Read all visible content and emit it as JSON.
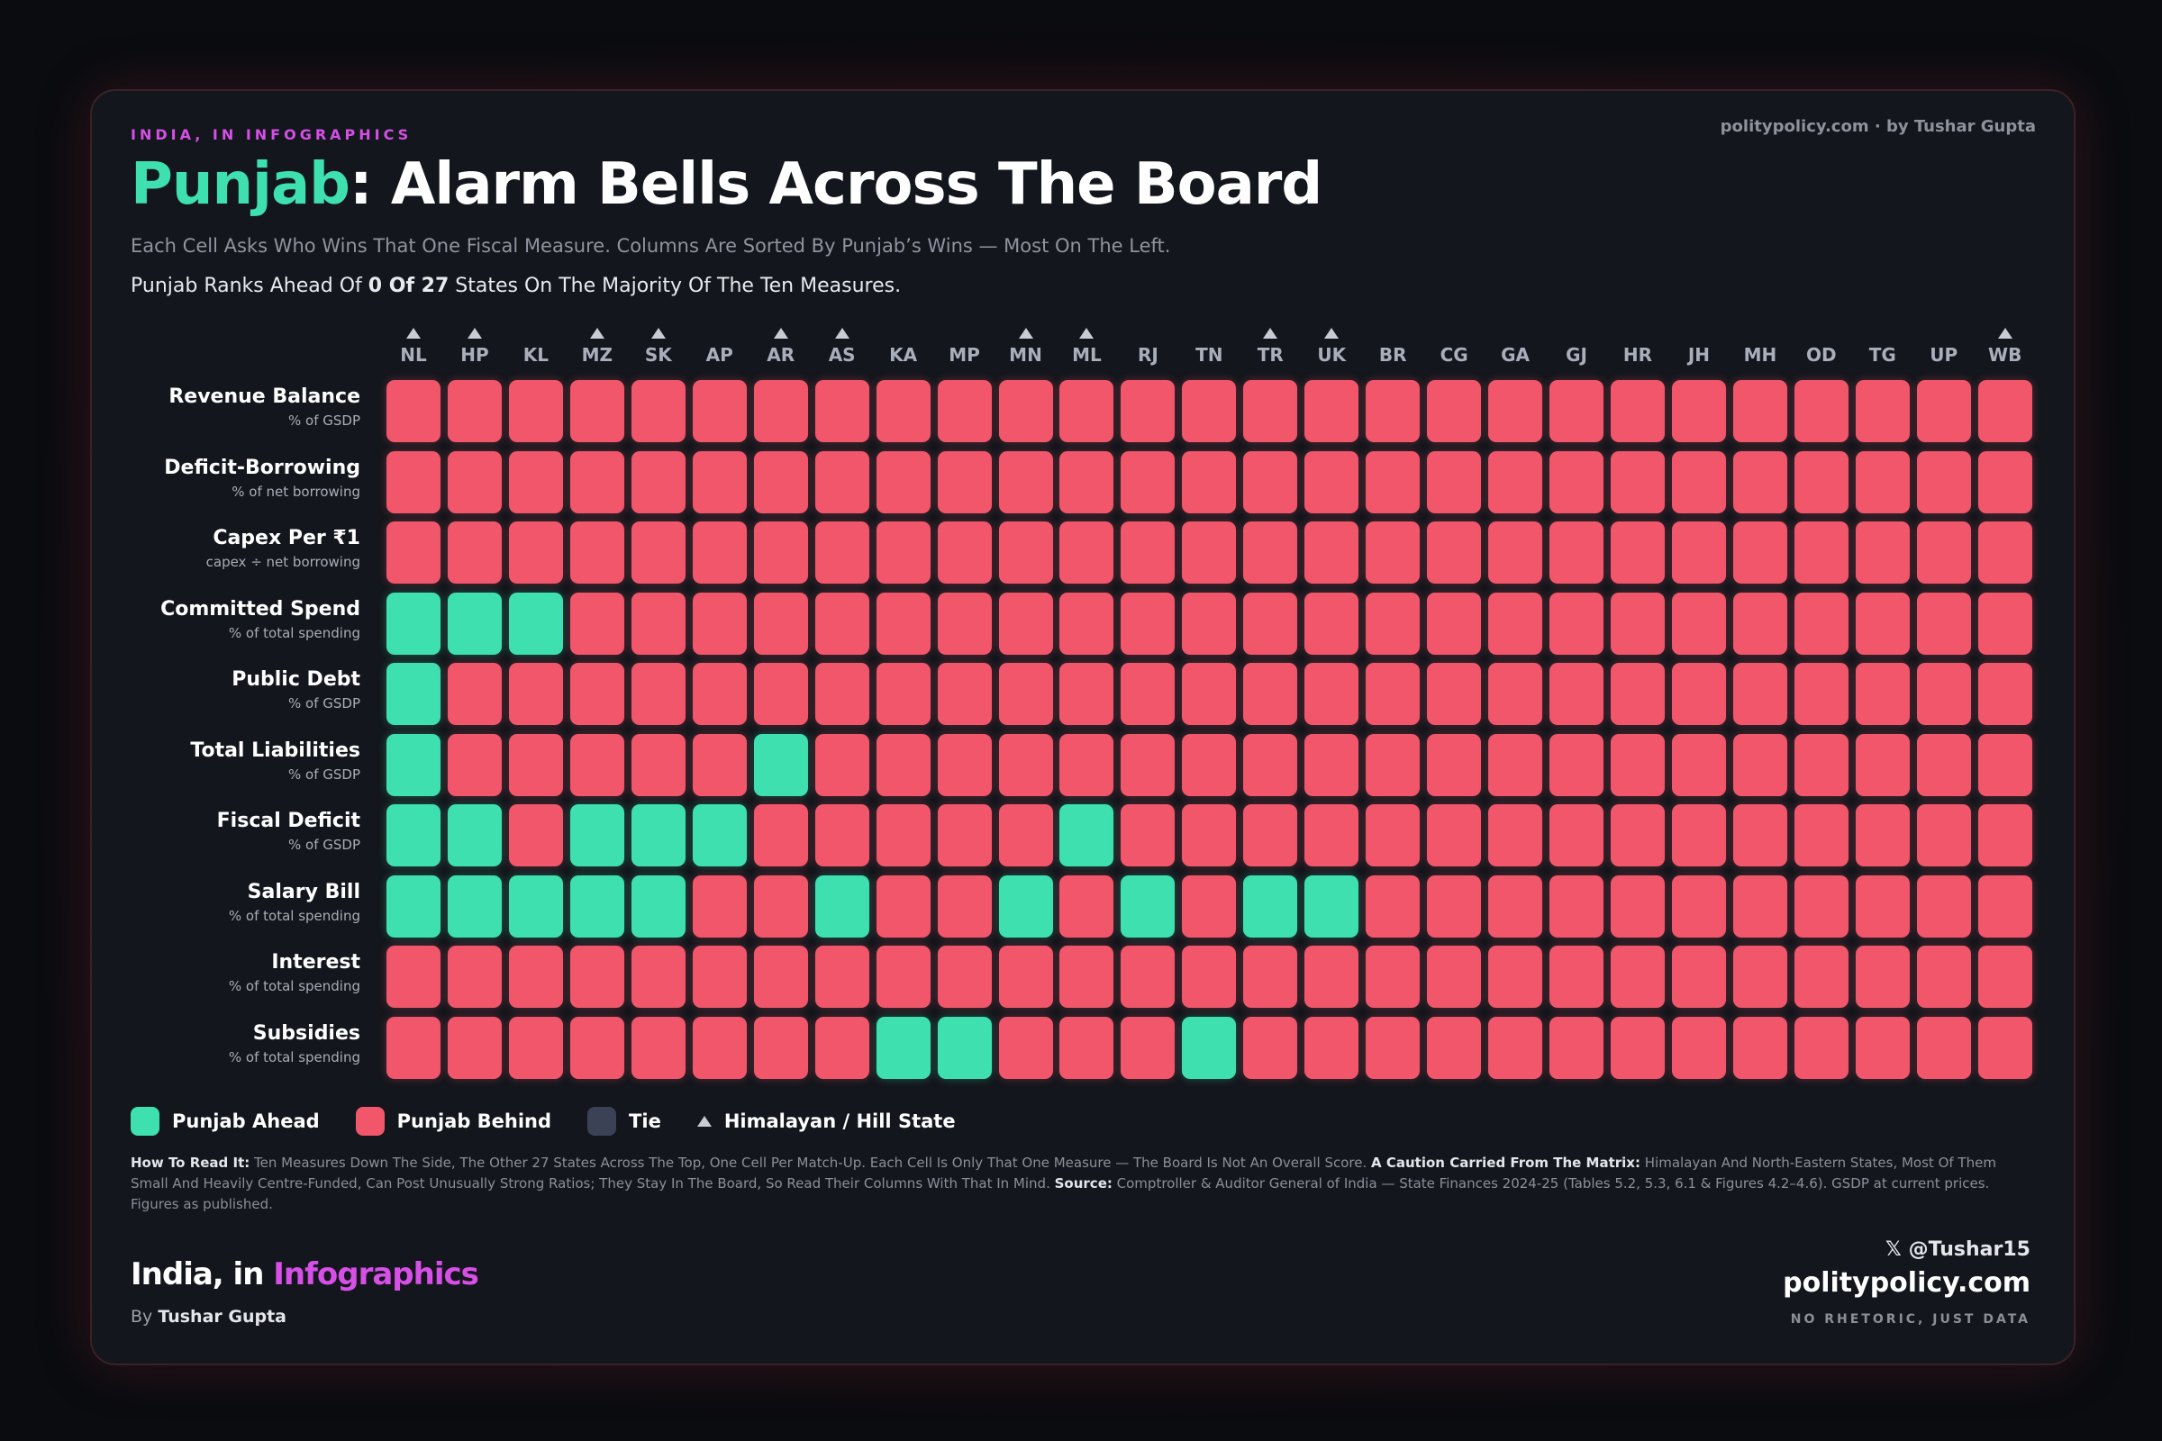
{
  "header": {
    "eyebrow": "INDIA, IN INFOGRAPHICS",
    "credit": "politypolicy.com · by Tushar Gupta",
    "title_highlight": "Punjab",
    "title_rest": ": Alarm Bells Across The Board",
    "subtitle": "Each Cell Asks Who Wins That One Fiscal Measure. Columns Are Sorted By Punjab’s Wins — Most On The Left.",
    "summary_pre": "Punjab Ranks Ahead Of",
    "summary_bold": "0 Of 27",
    "summary_post": "States On The Majority Of The Ten Measures."
  },
  "legend": [
    {
      "label": "Punjab Ahead",
      "color": "#3ee0b0"
    },
    {
      "label": "Punjab Behind",
      "color": "#f2566b"
    },
    {
      "label": "Tie",
      "color": "#3b4256"
    },
    {
      "label": "Himalayan / Hill State"
    }
  ],
  "matrix": {
    "columns": [
      {
        "label": "NL",
        "hill": true
      },
      {
        "label": "HP",
        "hill": true
      },
      {
        "label": "KL",
        "hill": false
      },
      {
        "label": "MZ",
        "hill": true
      },
      {
        "label": "SK",
        "hill": true
      },
      {
        "label": "AP",
        "hill": false
      },
      {
        "label": "AR",
        "hill": true
      },
      {
        "label": "AS",
        "hill": true
      },
      {
        "label": "KA",
        "hill": false
      },
      {
        "label": "MP",
        "hill": false
      },
      {
        "label": "MN",
        "hill": true
      },
      {
        "label": "ML",
        "hill": true
      },
      {
        "label": "RJ",
        "hill": false
      },
      {
        "label": "TN",
        "hill": false
      },
      {
        "label": "TR",
        "hill": true
      },
      {
        "label": "UK",
        "hill": true
      },
      {
        "label": "BR",
        "hill": false
      },
      {
        "label": "CG",
        "hill": false
      },
      {
        "label": "GA",
        "hill": false
      },
      {
        "label": "GJ",
        "hill": false
      },
      {
        "label": "HR",
        "hill": false
      },
      {
        "label": "JH",
        "hill": false
      },
      {
        "label": "MH",
        "hill": false
      },
      {
        "label": "OD",
        "hill": false
      },
      {
        "label": "TG",
        "hill": false
      },
      {
        "label": "UP",
        "hill": false
      },
      {
        "label": "WB",
        "hill": true
      }
    ],
    "rows": [
      {
        "name": "Revenue Balance",
        "unit": "% of GSDP",
        "cells": [
          1,
          1,
          1,
          1,
          1,
          1,
          1,
          1,
          1,
          1,
          1,
          1,
          1,
          1,
          1,
          1,
          1,
          1,
          1,
          1,
          1,
          1,
          1,
          1,
          1,
          1,
          1
        ]
      },
      {
        "name": "Deficit-Borrowing",
        "unit": "% of net borrowing",
        "cells": [
          1,
          1,
          1,
          1,
          1,
          1,
          1,
          1,
          1,
          1,
          1,
          1,
          1,
          1,
          1,
          1,
          1,
          1,
          1,
          1,
          1,
          1,
          1,
          1,
          1,
          1,
          1
        ]
      },
      {
        "name": "Capex Per ₹1",
        "unit": "capex ÷ net borrowing",
        "cells": [
          1,
          1,
          1,
          1,
          1,
          1,
          1,
          1,
          1,
          1,
          1,
          1,
          1,
          1,
          1,
          1,
          1,
          1,
          1,
          1,
          1,
          1,
          1,
          1,
          1,
          1,
          1
        ]
      },
      {
        "name": "Committed Spend",
        "unit": "% of total spending",
        "cells": [
          0,
          0,
          0,
          1,
          1,
          1,
          1,
          1,
          1,
          1,
          1,
          1,
          1,
          1,
          1,
          1,
          1,
          1,
          1,
          1,
          1,
          1,
          1,
          1,
          1,
          1,
          1
        ]
      },
      {
        "name": "Public Debt",
        "unit": "% of GSDP",
        "cells": [
          0,
          1,
          1,
          1,
          1,
          1,
          1,
          1,
          1,
          1,
          1,
          1,
          1,
          1,
          1,
          1,
          1,
          1,
          1,
          1,
          1,
          1,
          1,
          1,
          1,
          1,
          1
        ]
      },
      {
        "name": "Total Liabilities",
        "unit": "% of GSDP",
        "cells": [
          0,
          1,
          1,
          1,
          1,
          1,
          0,
          1,
          1,
          1,
          1,
          1,
          1,
          1,
          1,
          1,
          1,
          1,
          1,
          1,
          1,
          1,
          1,
          1,
          1,
          1,
          1
        ]
      },
      {
        "name": "Fiscal Deficit",
        "unit": "% of GSDP",
        "cells": [
          0,
          0,
          1,
          0,
          0,
          0,
          1,
          1,
          1,
          1,
          1,
          0,
          1,
          1,
          1,
          1,
          1,
          1,
          1,
          1,
          1,
          1,
          1,
          1,
          1,
          1,
          1
        ]
      },
      {
        "name": "Salary Bill",
        "unit": "% of total spending",
        "cells": [
          0,
          0,
          0,
          0,
          0,
          1,
          1,
          0,
          1,
          1,
          0,
          1,
          0,
          1,
          0,
          0,
          1,
          1,
          1,
          1,
          1,
          1,
          1,
          1,
          1,
          1,
          1
        ]
      },
      {
        "name": "Interest",
        "unit": "% of total spending",
        "cells": [
          1,
          1,
          1,
          1,
          1,
          1,
          1,
          1,
          1,
          1,
          1,
          1,
          1,
          1,
          1,
          1,
          1,
          1,
          1,
          1,
          1,
          1,
          1,
          1,
          1,
          1,
          1
        ]
      },
      {
        "name": "Subsidies",
        "unit": "% of total spending",
        "cells": [
          1,
          1,
          1,
          1,
          1,
          1,
          1,
          1,
          0,
          0,
          1,
          1,
          1,
          0,
          1,
          1,
          1,
          1,
          1,
          1,
          1,
          1,
          1,
          1,
          1,
          1,
          1
        ]
      }
    ]
  },
  "footnote": {
    "how_label": "How To Read It:",
    "how_text": "Ten Measures Down The Side, The Other 27 States Across The Top, One Cell Per Match-Up. Each Cell Is Only That One Measure — The Board Is Not An Overall Score.",
    "caution_label": "A Caution Carried From The Matrix:",
    "caution_text": "Himalayan And North-Eastern States, Most Of Them Small And Heavily Centre-Funded, Can Post Unusually Strong Ratios; They Stay In The Board, So Read Their Columns With That In Mind.",
    "source_label": "Source:",
    "source_text": "Comptroller & Auditor General of India — State Finances 2024-25 (Tables 5.2, 5.3, 6.1 & Figures 4.2–4.6). GSDP at current prices. Figures as published."
  },
  "footer": {
    "brand_pre": "India, in",
    "brand_highlight": "Infographics",
    "byline_pre": "By",
    "byline_name": "Tushar Gupta",
    "handle": "@Tushar15",
    "site": "politypolicy.com",
    "tagline": "NO RHETORIC, JUST DATA"
  }
}
